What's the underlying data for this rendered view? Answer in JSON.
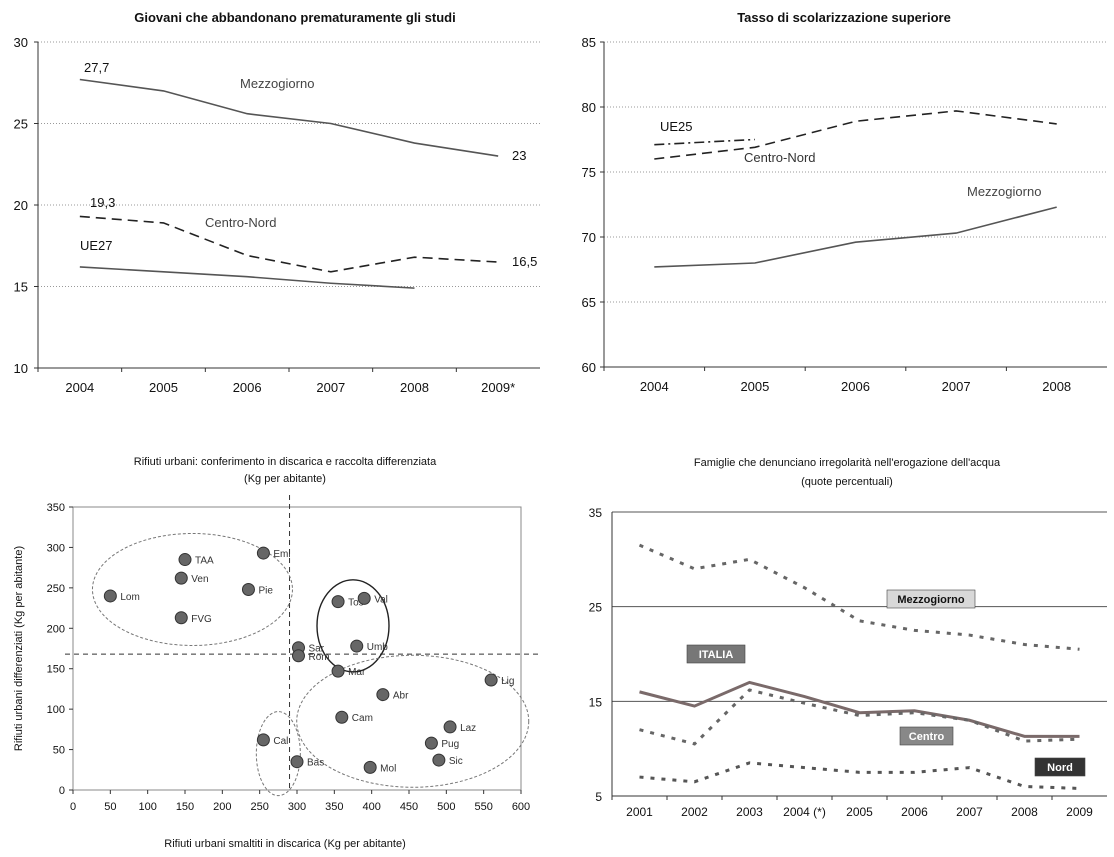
{
  "chart_data": [
    {
      "type": "line",
      "title": "Giovani che abbandonano prematuramente gli studi",
      "xlabel": "",
      "ylabel": "",
      "categories": [
        "2004",
        "2005",
        "2006",
        "2007",
        "2008",
        "2009*"
      ],
      "ylim": [
        10,
        30
      ],
      "yticks": [
        "10",
        "15",
        "20",
        "25",
        "30"
      ],
      "grid": true,
      "series": [
        {
          "name": "Mezzogiorno",
          "values": [
            27.7,
            27.0,
            25.6,
            25.0,
            23.8,
            23.0
          ],
          "style": "solid",
          "color": "#555555"
        },
        {
          "name": "Centro-Nord",
          "values": [
            19.3,
            18.9,
            16.9,
            15.9,
            16.8,
            16.5
          ],
          "style": "dashed",
          "color": "#222222"
        },
        {
          "name": "UE27",
          "values": [
            16.2,
            15.9,
            15.6,
            15.2,
            14.9,
            null
          ],
          "style": "solid",
          "color": "#555555"
        }
      ],
      "annotations": [
        "27,7",
        "23",
        "19,3",
        "16,5"
      ]
    },
    {
      "type": "line",
      "title": "Tasso di scolarizzazione superiore",
      "xlabel": "",
      "ylabel": "",
      "categories": [
        "2004",
        "2005",
        "2006",
        "2007",
        "2008"
      ],
      "ylim": [
        60,
        85
      ],
      "yticks": [
        "60",
        "65",
        "70",
        "75",
        "80",
        "85"
      ],
      "grid": true,
      "series": [
        {
          "name": "UE25",
          "values": [
            77.1,
            77.5,
            null,
            null,
            null
          ],
          "style": "dashdot",
          "color": "#222222"
        },
        {
          "name": "Centro-Nord",
          "values": [
            76.0,
            76.9,
            78.9,
            79.7,
            78.7
          ],
          "style": "dashed",
          "color": "#222222"
        },
        {
          "name": "Mezzogiorno",
          "values": [
            67.7,
            68.0,
            69.6,
            70.3,
            72.3
          ],
          "style": "solid",
          "color": "#555555"
        }
      ]
    },
    {
      "type": "scatter",
      "title": "Rifiuti urbani: conferimento in discarica e raccolta differenziata",
      "subtitle": "(Kg per abitante)",
      "xlabel": "Rifiuti urbani smaltiti in discarica (Kg per abitante)",
      "ylabel": "Rifiuti urbani differenziati (Kg per abitante)",
      "xlim": [
        0,
        600
      ],
      "ylim": [
        0,
        350
      ],
      "xticks": [
        "0",
        "50",
        "100",
        "150",
        "200",
        "250",
        "300",
        "350",
        "400",
        "450",
        "500",
        "550",
        "600"
      ],
      "yticks": [
        "0",
        "50",
        "100",
        "150",
        "200",
        "250",
        "300",
        "350"
      ],
      "reference_lines": {
        "x": 290,
        "y": 168
      },
      "points": [
        {
          "label": "Lom",
          "x": 50,
          "y": 240
        },
        {
          "label": "TAA",
          "x": 150,
          "y": 285
        },
        {
          "label": "Ven",
          "x": 145,
          "y": 262
        },
        {
          "label": "Emi",
          "x": 255,
          "y": 293
        },
        {
          "label": "Pie",
          "x": 235,
          "y": 248
        },
        {
          "label": "FVG",
          "x": 145,
          "y": 213
        },
        {
          "label": "Tos",
          "x": 355,
          "y": 233
        },
        {
          "label": "Val",
          "x": 390,
          "y": 237
        },
        {
          "label": "Umb",
          "x": 380,
          "y": 178
        },
        {
          "label": "Sar",
          "x": 302,
          "y": 176
        },
        {
          "label": "Rom",
          "x": 302,
          "y": 166
        },
        {
          "label": "Mar",
          "x": 355,
          "y": 147
        },
        {
          "label": "Lig",
          "x": 560,
          "y": 136
        },
        {
          "label": "Abr",
          "x": 415,
          "y": 118
        },
        {
          "label": "Cam",
          "x": 360,
          "y": 90
        },
        {
          "label": "Laz",
          "x": 505,
          "y": 78
        },
        {
          "label": "Cal",
          "x": 255,
          "y": 62
        },
        {
          "label": "Pug",
          "x": 480,
          "y": 58
        },
        {
          "label": "Sic",
          "x": 490,
          "y": 37
        },
        {
          "label": "Mol",
          "x": 398,
          "y": 28
        },
        {
          "label": "Bas",
          "x": 300,
          "y": 35
        }
      ]
    },
    {
      "type": "line",
      "title": "Famiglie che denunciano irregolarità nell'erogazione dell'acqua",
      "subtitle": "(quote percentuali)",
      "xlabel": "",
      "ylabel": "",
      "categories": [
        "2001",
        "2002",
        "2003",
        "2004 (*)",
        "2005",
        "2006",
        "2007",
        "2008",
        "2009"
      ],
      "ylim": [
        5,
        35
      ],
      "yticks": [
        "5",
        "15",
        "25",
        "35"
      ],
      "grid": true,
      "series": [
        {
          "name": "Mezzogiorno",
          "values": [
            31.5,
            29.0,
            30.0,
            27.0,
            23.5,
            22.5,
            22.0,
            21.0,
            20.5
          ],
          "style": "dotted",
          "color": "#666666"
        },
        {
          "name": "ITALIA",
          "values": [
            16.0,
            14.5,
            17.0,
            15.5,
            13.8,
            14.0,
            13.0,
            11.3,
            11.3
          ],
          "style": "solid",
          "color": "#7a6a6a"
        },
        {
          "name": "Centro",
          "values": [
            12.0,
            10.5,
            16.2,
            14.8,
            13.5,
            13.8,
            13.0,
            10.8,
            11.0
          ],
          "style": "dotted",
          "color": "#666666"
        },
        {
          "name": "Nord",
          "values": [
            7.0,
            6.5,
            8.5,
            8.0,
            7.5,
            7.5,
            8.0,
            6.0,
            5.8
          ],
          "style": "dotted",
          "color": "#555555"
        }
      ]
    }
  ]
}
